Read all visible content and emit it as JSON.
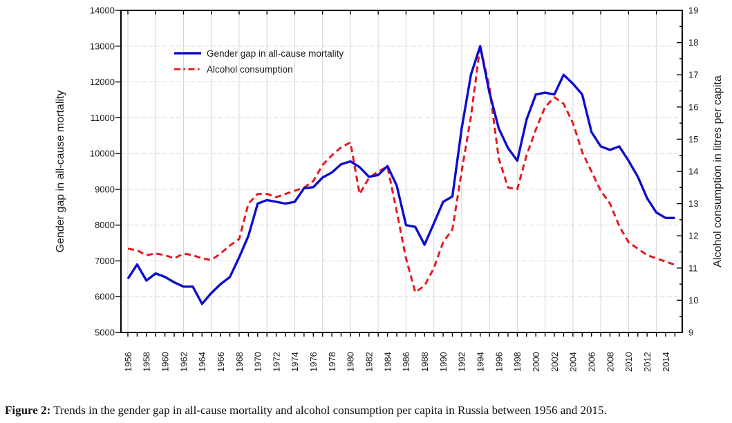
{
  "caption": {
    "prefix": "Figure 2:",
    "text": " Trends in the gender gap in all-cause mortality and alcohol consumption per capita in Russia between 1956 and 2015."
  },
  "colors": {
    "gender_gap_line": "#0d0dd0",
    "alcohol_line": "#e6191f",
    "grid": "#d6d6d6",
    "axis": "#000000",
    "text": "#1a1a1a"
  },
  "chart_data": {
    "type": "line",
    "title": "",
    "grid": true,
    "legend_position": "top-left-inside",
    "x": [
      1956,
      1957,
      1958,
      1959,
      1960,
      1961,
      1962,
      1963,
      1964,
      1965,
      1966,
      1967,
      1968,
      1969,
      1970,
      1971,
      1972,
      1973,
      1974,
      1975,
      1976,
      1977,
      1978,
      1979,
      1980,
      1981,
      1982,
      1983,
      1984,
      1985,
      1986,
      1987,
      1988,
      1989,
      1990,
      1991,
      1992,
      1993,
      1994,
      1995,
      1996,
      1997,
      1998,
      1999,
      2000,
      2001,
      2002,
      2003,
      2004,
      2005,
      2006,
      2007,
      2008,
      2009,
      2010,
      2011,
      2012,
      2013,
      2014,
      2015
    ],
    "series": [
      {
        "name": "Gender gap in all-cause mortality",
        "axis": "left",
        "style": "solid",
        "values": [
          6500,
          6900,
          6450,
          6650,
          6550,
          6400,
          6280,
          6280,
          5800,
          6100,
          6350,
          6550,
          7100,
          7700,
          8600,
          8700,
          8650,
          8600,
          8650,
          9030,
          9060,
          9330,
          9470,
          9700,
          9780,
          9620,
          9350,
          9400,
          9650,
          9100,
          8000,
          7950,
          7450,
          8050,
          8650,
          8800,
          10700,
          12200,
          13000,
          11700,
          10700,
          10150,
          9800,
          10950,
          11650,
          11700,
          11650,
          12200,
          11950,
          11650,
          10600,
          10200,
          10100,
          10200,
          9800,
          9350,
          8750,
          8350,
          8200,
          8200
        ]
      },
      {
        "name": "Alcohol consumption",
        "axis": "right",
        "style": "dashed",
        "values": [
          11.6,
          11.55,
          11.4,
          11.45,
          11.4,
          11.3,
          11.45,
          11.4,
          11.3,
          11.25,
          11.45,
          11.7,
          11.9,
          13.0,
          13.3,
          13.3,
          13.2,
          13.3,
          13.4,
          13.5,
          13.7,
          14.2,
          14.5,
          14.75,
          14.9,
          13.3,
          13.8,
          14.0,
          14.15,
          12.75,
          11.3,
          10.25,
          10.45,
          11.0,
          11.8,
          12.2,
          14.0,
          15.7,
          17.9,
          16.6,
          14.4,
          13.5,
          13.45,
          14.5,
          15.3,
          16.0,
          16.3,
          16.1,
          15.5,
          14.6,
          14.0,
          13.4,
          13.0,
          12.3,
          11.8,
          11.6,
          11.4,
          11.3,
          11.2,
          11.1
        ]
      }
    ],
    "left_axis": {
      "label": "Gender gap in all-cause mortality",
      "min": 5000,
      "max": 14000,
      "ticks": [
        5000,
        6000,
        7000,
        8000,
        9000,
        10000,
        11000,
        12000,
        13000,
        14000
      ]
    },
    "right_axis": {
      "label": "Alcohol consumption in litres per capita",
      "min": 9,
      "max": 19,
      "ticks": [
        9,
        10,
        11,
        12,
        13,
        14,
        15,
        16,
        17,
        18,
        19
      ],
      "minor_ticks": [
        9.5,
        10.5,
        11.5,
        12.5,
        13.5,
        14.5,
        15.5,
        16.5,
        17.5,
        18.5
      ]
    },
    "x_axis": {
      "first_year": 1956,
      "last_year": 2015,
      "tick_every_years": 1,
      "tick_labels": [
        1956,
        1958,
        1960,
        1962,
        1964,
        1966,
        1968,
        1970,
        1972,
        1974,
        1976,
        1978,
        1980,
        1982,
        1984,
        1986,
        1988,
        1990,
        1992,
        1994,
        1996,
        1998,
        2000,
        2002,
        2004,
        2006,
        2008,
        2010,
        2012,
        2014
      ],
      "gridline_years": [
        1956,
        1959,
        1962,
        1965,
        1968,
        1971,
        1974,
        1977,
        1980,
        1983,
        1986,
        1989,
        1992,
        1995,
        1998,
        2001,
        2004,
        2007,
        2010,
        2013
      ]
    }
  }
}
